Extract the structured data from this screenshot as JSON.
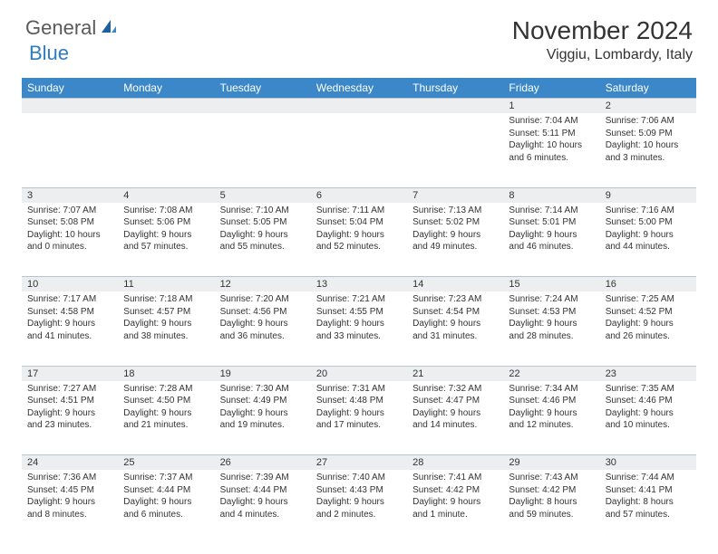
{
  "logo": {
    "part1": "General",
    "part2": "Blue"
  },
  "title": "November 2024",
  "location": "Viggiu, Lombardy, Italy",
  "header_bg": "#3b87c8",
  "daynum_bg": "#eceef0",
  "border_color": "#b8c4d0",
  "weekdays": [
    "Sunday",
    "Monday",
    "Tuesday",
    "Wednesday",
    "Thursday",
    "Friday",
    "Saturday"
  ],
  "weeks": [
    [
      null,
      null,
      null,
      null,
      null,
      {
        "n": "1",
        "sr": "Sunrise: 7:04 AM",
        "ss": "Sunset: 5:11 PM",
        "dl": "Daylight: 10 hours and 6 minutes."
      },
      {
        "n": "2",
        "sr": "Sunrise: 7:06 AM",
        "ss": "Sunset: 5:09 PM",
        "dl": "Daylight: 10 hours and 3 minutes."
      }
    ],
    [
      {
        "n": "3",
        "sr": "Sunrise: 7:07 AM",
        "ss": "Sunset: 5:08 PM",
        "dl": "Daylight: 10 hours and 0 minutes."
      },
      {
        "n": "4",
        "sr": "Sunrise: 7:08 AM",
        "ss": "Sunset: 5:06 PM",
        "dl": "Daylight: 9 hours and 57 minutes."
      },
      {
        "n": "5",
        "sr": "Sunrise: 7:10 AM",
        "ss": "Sunset: 5:05 PM",
        "dl": "Daylight: 9 hours and 55 minutes."
      },
      {
        "n": "6",
        "sr": "Sunrise: 7:11 AM",
        "ss": "Sunset: 5:04 PM",
        "dl": "Daylight: 9 hours and 52 minutes."
      },
      {
        "n": "7",
        "sr": "Sunrise: 7:13 AM",
        "ss": "Sunset: 5:02 PM",
        "dl": "Daylight: 9 hours and 49 minutes."
      },
      {
        "n": "8",
        "sr": "Sunrise: 7:14 AM",
        "ss": "Sunset: 5:01 PM",
        "dl": "Daylight: 9 hours and 46 minutes."
      },
      {
        "n": "9",
        "sr": "Sunrise: 7:16 AM",
        "ss": "Sunset: 5:00 PM",
        "dl": "Daylight: 9 hours and 44 minutes."
      }
    ],
    [
      {
        "n": "10",
        "sr": "Sunrise: 7:17 AM",
        "ss": "Sunset: 4:58 PM",
        "dl": "Daylight: 9 hours and 41 minutes."
      },
      {
        "n": "11",
        "sr": "Sunrise: 7:18 AM",
        "ss": "Sunset: 4:57 PM",
        "dl": "Daylight: 9 hours and 38 minutes."
      },
      {
        "n": "12",
        "sr": "Sunrise: 7:20 AM",
        "ss": "Sunset: 4:56 PM",
        "dl": "Daylight: 9 hours and 36 minutes."
      },
      {
        "n": "13",
        "sr": "Sunrise: 7:21 AM",
        "ss": "Sunset: 4:55 PM",
        "dl": "Daylight: 9 hours and 33 minutes."
      },
      {
        "n": "14",
        "sr": "Sunrise: 7:23 AM",
        "ss": "Sunset: 4:54 PM",
        "dl": "Daylight: 9 hours and 31 minutes."
      },
      {
        "n": "15",
        "sr": "Sunrise: 7:24 AM",
        "ss": "Sunset: 4:53 PM",
        "dl": "Daylight: 9 hours and 28 minutes."
      },
      {
        "n": "16",
        "sr": "Sunrise: 7:25 AM",
        "ss": "Sunset: 4:52 PM",
        "dl": "Daylight: 9 hours and 26 minutes."
      }
    ],
    [
      {
        "n": "17",
        "sr": "Sunrise: 7:27 AM",
        "ss": "Sunset: 4:51 PM",
        "dl": "Daylight: 9 hours and 23 minutes."
      },
      {
        "n": "18",
        "sr": "Sunrise: 7:28 AM",
        "ss": "Sunset: 4:50 PM",
        "dl": "Daylight: 9 hours and 21 minutes."
      },
      {
        "n": "19",
        "sr": "Sunrise: 7:30 AM",
        "ss": "Sunset: 4:49 PM",
        "dl": "Daylight: 9 hours and 19 minutes."
      },
      {
        "n": "20",
        "sr": "Sunrise: 7:31 AM",
        "ss": "Sunset: 4:48 PM",
        "dl": "Daylight: 9 hours and 17 minutes."
      },
      {
        "n": "21",
        "sr": "Sunrise: 7:32 AM",
        "ss": "Sunset: 4:47 PM",
        "dl": "Daylight: 9 hours and 14 minutes."
      },
      {
        "n": "22",
        "sr": "Sunrise: 7:34 AM",
        "ss": "Sunset: 4:46 PM",
        "dl": "Daylight: 9 hours and 12 minutes."
      },
      {
        "n": "23",
        "sr": "Sunrise: 7:35 AM",
        "ss": "Sunset: 4:46 PM",
        "dl": "Daylight: 9 hours and 10 minutes."
      }
    ],
    [
      {
        "n": "24",
        "sr": "Sunrise: 7:36 AM",
        "ss": "Sunset: 4:45 PM",
        "dl": "Daylight: 9 hours and 8 minutes."
      },
      {
        "n": "25",
        "sr": "Sunrise: 7:37 AM",
        "ss": "Sunset: 4:44 PM",
        "dl": "Daylight: 9 hours and 6 minutes."
      },
      {
        "n": "26",
        "sr": "Sunrise: 7:39 AM",
        "ss": "Sunset: 4:44 PM",
        "dl": "Daylight: 9 hours and 4 minutes."
      },
      {
        "n": "27",
        "sr": "Sunrise: 7:40 AM",
        "ss": "Sunset: 4:43 PM",
        "dl": "Daylight: 9 hours and 2 minutes."
      },
      {
        "n": "28",
        "sr": "Sunrise: 7:41 AM",
        "ss": "Sunset: 4:42 PM",
        "dl": "Daylight: 9 hours and 1 minute."
      },
      {
        "n": "29",
        "sr": "Sunrise: 7:43 AM",
        "ss": "Sunset: 4:42 PM",
        "dl": "Daylight: 8 hours and 59 minutes."
      },
      {
        "n": "30",
        "sr": "Sunrise: 7:44 AM",
        "ss": "Sunset: 4:41 PM",
        "dl": "Daylight: 8 hours and 57 minutes."
      }
    ]
  ]
}
